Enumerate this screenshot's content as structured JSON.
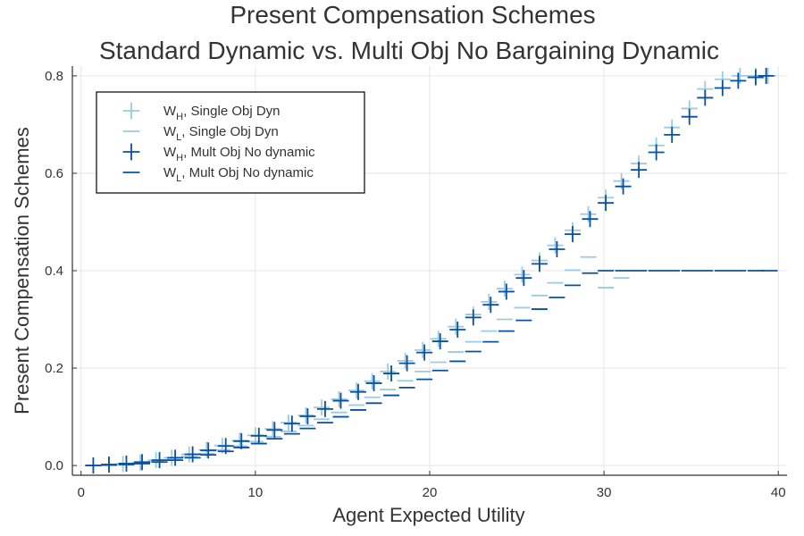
{
  "chart_data": {
    "type": "scatter",
    "title": "Present Compensation Schemes",
    "subtitle": "Standard Dynamic vs. Multi Obj No Bargaining Dynamic",
    "xlabel": "Agent Expected Utility",
    "ylabel": "Present Compensation Schemes",
    "xlim": [
      -0.5,
      40.5
    ],
    "ylim": [
      -0.02,
      0.82
    ],
    "xticks": [
      0,
      10,
      20,
      30,
      40
    ],
    "xtick_labels": [
      "0",
      "10",
      "20",
      "30",
      "40"
    ],
    "yticks": [
      0.0,
      0.2,
      0.4,
      0.6,
      0.8
    ],
    "ytick_labels": [
      "0.0",
      "0.2",
      "0.4",
      "0.6",
      "0.8"
    ],
    "grid": true,
    "legend_position": "top-left",
    "series": [
      {
        "name": "WH, Single Obj Dyn",
        "legend_main": "W",
        "legend_sub": "H",
        "legend_rest": ", Single Obj Dyn",
        "marker": "cross",
        "color": "#9ecae1",
        "x": [
          0.7,
          1.6,
          2.4,
          3.4,
          4.3,
          5.2,
          6.2,
          7.2,
          8.1,
          9.1,
          10.0,
          11.0,
          11.9,
          12.9,
          13.8,
          14.8,
          15.8,
          16.7,
          17.6,
          18.6,
          19.6,
          20.5,
          21.5,
          22.5,
          23.4,
          24.3,
          25.3,
          26.3,
          27.2,
          28.2,
          29.1,
          30.1,
          31.0,
          32.0,
          33.0,
          33.9,
          34.9,
          35.8,
          36.8,
          37.8,
          38.7,
          39.4
        ],
        "y": [
          0.0,
          0.002,
          0.003,
          0.006,
          0.011,
          0.016,
          0.023,
          0.032,
          0.041,
          0.051,
          0.062,
          0.075,
          0.088,
          0.103,
          0.119,
          0.136,
          0.154,
          0.173,
          0.193,
          0.215,
          0.237,
          0.26,
          0.285,
          0.31,
          0.336,
          0.363,
          0.392,
          0.421,
          0.452,
          0.483,
          0.516,
          0.55,
          0.584,
          0.62,
          0.657,
          0.694,
          0.733,
          0.773,
          0.793,
          0.8,
          0.8,
          0.8
        ]
      },
      {
        "name": "WL, Single Obj Dyn",
        "legend_main": "W",
        "legend_sub": "L",
        "legend_rest": ", Single Obj Dyn",
        "marker": "hline",
        "color": "#9ecae1",
        "x": [
          0.7,
          1.6,
          2.5,
          3.4,
          4.3,
          5.3,
          6.2,
          7.2,
          8.1,
          9.1,
          10.0,
          11.0,
          11.9,
          12.9,
          13.8,
          14.8,
          15.8,
          16.7,
          17.6,
          18.6,
          19.6,
          20.5,
          21.5,
          22.5,
          23.4,
          24.3,
          25.3,
          26.3,
          27.2,
          28.2,
          29.1,
          30.1,
          31.0
        ],
        "y": [
          0.0,
          0.001,
          0.002,
          0.005,
          0.008,
          0.012,
          0.018,
          0.024,
          0.032,
          0.04,
          0.049,
          0.059,
          0.07,
          0.082,
          0.095,
          0.109,
          0.124,
          0.14,
          0.156,
          0.174,
          0.193,
          0.212,
          0.233,
          0.254,
          0.276,
          0.3,
          0.324,
          0.349,
          0.375,
          0.401,
          0.428,
          0.365,
          0.385
        ]
      },
      {
        "name": "WH, Mult Obj No dynamic",
        "legend_main": "W",
        "legend_sub": "H",
        "legend_rest": ", Mult Obj No dynamic",
        "marker": "cross",
        "color": "#08519c",
        "x": [
          0.7,
          1.6,
          2.6,
          3.5,
          4.5,
          5.4,
          6.4,
          7.3,
          8.3,
          9.2,
          10.2,
          11.1,
          12.1,
          13.0,
          14.0,
          14.9,
          15.9,
          16.8,
          17.8,
          18.7,
          19.7,
          20.6,
          21.6,
          22.5,
          23.5,
          24.4,
          25.4,
          26.3,
          27.3,
          28.2,
          29.2,
          30.1,
          31.1,
          32.0,
          33.0,
          33.9,
          34.9,
          35.8,
          36.8,
          37.7,
          38.7,
          39.3
        ],
        "y": [
          0.0,
          0.002,
          0.004,
          0.007,
          0.011,
          0.016,
          0.023,
          0.031,
          0.04,
          0.05,
          0.061,
          0.073,
          0.086,
          0.101,
          0.116,
          0.133,
          0.151,
          0.169,
          0.189,
          0.21,
          0.232,
          0.255,
          0.279,
          0.304,
          0.33,
          0.357,
          0.385,
          0.414,
          0.444,
          0.475,
          0.506,
          0.539,
          0.573,
          0.607,
          0.643,
          0.679,
          0.716,
          0.755,
          0.775,
          0.79,
          0.797,
          0.8
        ]
      },
      {
        "name": "WL, Mult Obj No dynamic",
        "legend_main": "W",
        "legend_sub": "L",
        "legend_rest": ", Mult Obj No dynamic",
        "marker": "hline",
        "color": "#08519c",
        "x": [
          0.7,
          1.6,
          2.6,
          3.5,
          4.5,
          5.4,
          6.4,
          7.3,
          8.3,
          9.2,
          10.2,
          11.1,
          12.1,
          13.0,
          14.0,
          14.9,
          15.9,
          16.8,
          17.8,
          18.7,
          19.7,
          20.6,
          21.6,
          22.5,
          23.5,
          24.4,
          25.4,
          26.3,
          27.3,
          28.2,
          29.2,
          30.1,
          31.1,
          32.0,
          33.0,
          33.9,
          34.9,
          35.8,
          36.8,
          37.7,
          38.7,
          39.5
        ],
        "y": [
          0.0,
          0.001,
          0.002,
          0.004,
          0.007,
          0.011,
          0.016,
          0.022,
          0.029,
          0.037,
          0.045,
          0.055,
          0.065,
          0.076,
          0.088,
          0.1,
          0.114,
          0.128,
          0.144,
          0.16,
          0.177,
          0.195,
          0.214,
          0.234,
          0.254,
          0.276,
          0.298,
          0.321,
          0.345,
          0.37,
          0.395,
          0.4,
          0.4,
          0.4,
          0.4,
          0.4,
          0.4,
          0.4,
          0.4,
          0.4,
          0.4,
          0.4
        ]
      }
    ]
  }
}
